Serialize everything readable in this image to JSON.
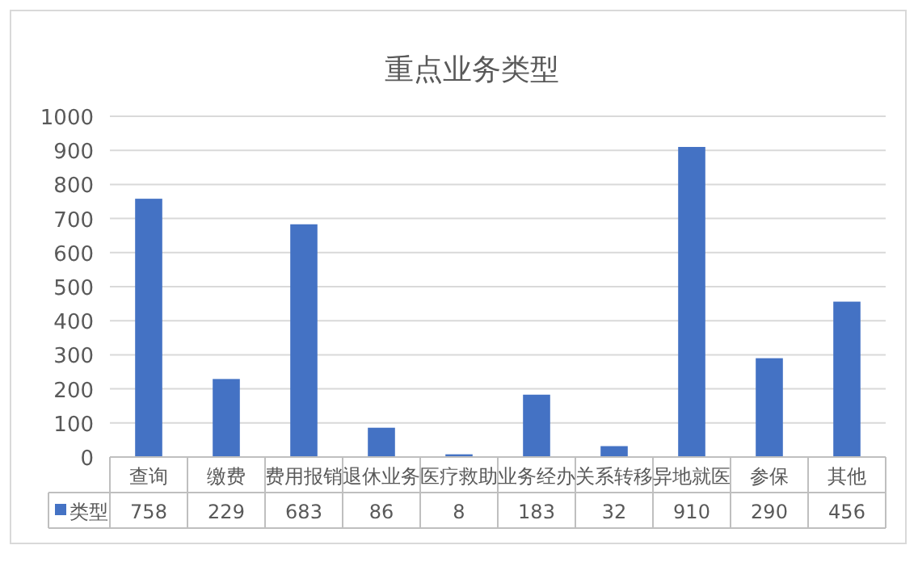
{
  "chart_data": {
    "type": "bar",
    "title": "重点业务类型",
    "categories": [
      "查询",
      "缴费",
      "费用报销",
      "退休业务",
      "医疗救助",
      "业务经办",
      "关系转移",
      "异地就医",
      "参保",
      "其他"
    ],
    "series": [
      {
        "name": "类型",
        "color": "#4472c4",
        "values": [
          758,
          229,
          683,
          86,
          8,
          183,
          32,
          910,
          290,
          456
        ]
      }
    ],
    "ylim": [
      0,
      1000
    ],
    "yticks": [
      0,
      100,
      200,
      300,
      400,
      500,
      600,
      700,
      800,
      900,
      1000
    ],
    "grid": "y",
    "legend": "bottom",
    "data_labels": true
  }
}
